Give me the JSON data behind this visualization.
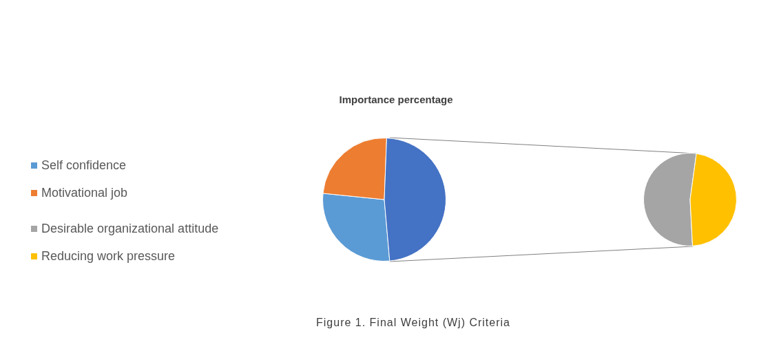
{
  "chart_data": [
    {
      "type": "pie",
      "title": "Importance percentage",
      "categories": [
        "Self confidence",
        "Motivational job",
        null
      ],
      "values": [
        28,
        24,
        48
      ],
      "colors": [
        "#5b9bd5",
        "#ed7d31",
        "#4472c4"
      ],
      "legend": "left",
      "annotations": [
        "Figure 1. Final Weight (Wj) Criteria"
      ]
    },
    {
      "type": "pie",
      "categories": [
        "Desirable organizational attitude",
        "Reducing work pressure"
      ],
      "values": [
        53,
        47
      ],
      "colors": [
        "#a5a5a5",
        "#ffc000"
      ],
      "legend": "left"
    }
  ]
}
